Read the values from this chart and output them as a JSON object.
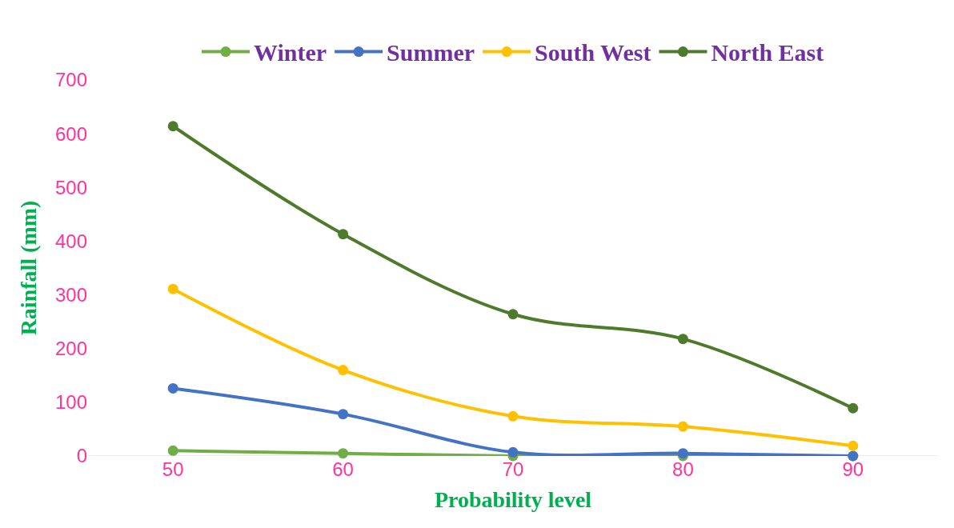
{
  "chart_data": {
    "type": "line",
    "xlabel": "Probability level",
    "ylabel": "Rainfall (mm)",
    "categories": [
      "50",
      "60",
      "70",
      "80",
      "90"
    ],
    "series": [
      {
        "name": "Winter",
        "color": "#70ad47",
        "values": [
          10,
          5,
          0,
          0,
          0
        ]
      },
      {
        "name": "Summer",
        "color": "#4472c4",
        "values": [
          126,
          78,
          7,
          5,
          0
        ]
      },
      {
        "name": "South West",
        "color": "#ffc000",
        "values": [
          311,
          160,
          74,
          55,
          19
        ]
      },
      {
        "name": "North East",
        "color": "#4e7a2b",
        "values": [
          614,
          413,
          264,
          218,
          89
        ]
      }
    ],
    "ylim": [
      0,
      700
    ],
    "yticks": [
      0,
      100,
      200,
      300,
      400,
      500,
      600,
      700
    ],
    "grid": false,
    "legend": "top",
    "marker": "circle",
    "line_style": "solid"
  }
}
